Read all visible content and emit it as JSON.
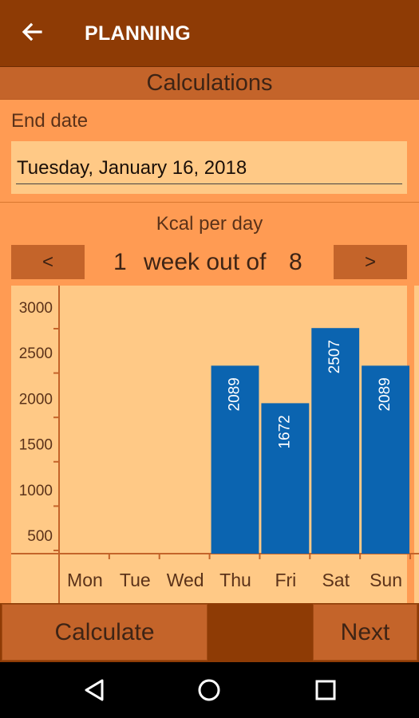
{
  "appbar": {
    "title": "PLANNING",
    "back_icon": "arrow-left-icon"
  },
  "section": {
    "title": "Calculations"
  },
  "end_date": {
    "label": "End date",
    "value": "Tuesday, January 16, 2018"
  },
  "kcal": {
    "label": "Kcal per day"
  },
  "week_nav": {
    "prev_label": "<",
    "next_label": ">",
    "current": "1",
    "middle": "week out of",
    "total": "8"
  },
  "chart_data": {
    "type": "bar",
    "categories": [
      "Mon",
      "Tue",
      "Wed",
      "Thu",
      "Fri",
      "Sat",
      "Sun"
    ],
    "values": [
      null,
      null,
      null,
      2089,
      1672,
      2507,
      2089
    ],
    "data_labels": [
      "",
      "",
      "",
      "2089",
      "1672",
      "2507",
      "2089"
    ],
    "y_ticks": [
      "500",
      "1000",
      "1500",
      "2000",
      "2500",
      "3000"
    ],
    "ylim": [
      0,
      3000
    ],
    "bar_color": "#0b64b0",
    "grid": false
  },
  "buttons": {
    "calculate": "Calculate",
    "next": "Next"
  },
  "system_nav": {
    "back": "triangle-back-icon",
    "home": "circle-home-icon",
    "recents": "square-recents-icon"
  },
  "colors": {
    "appbar": "#8e3b05",
    "background": "#ff9b53",
    "panel": "#ffc986",
    "button": "#c4642a"
  }
}
